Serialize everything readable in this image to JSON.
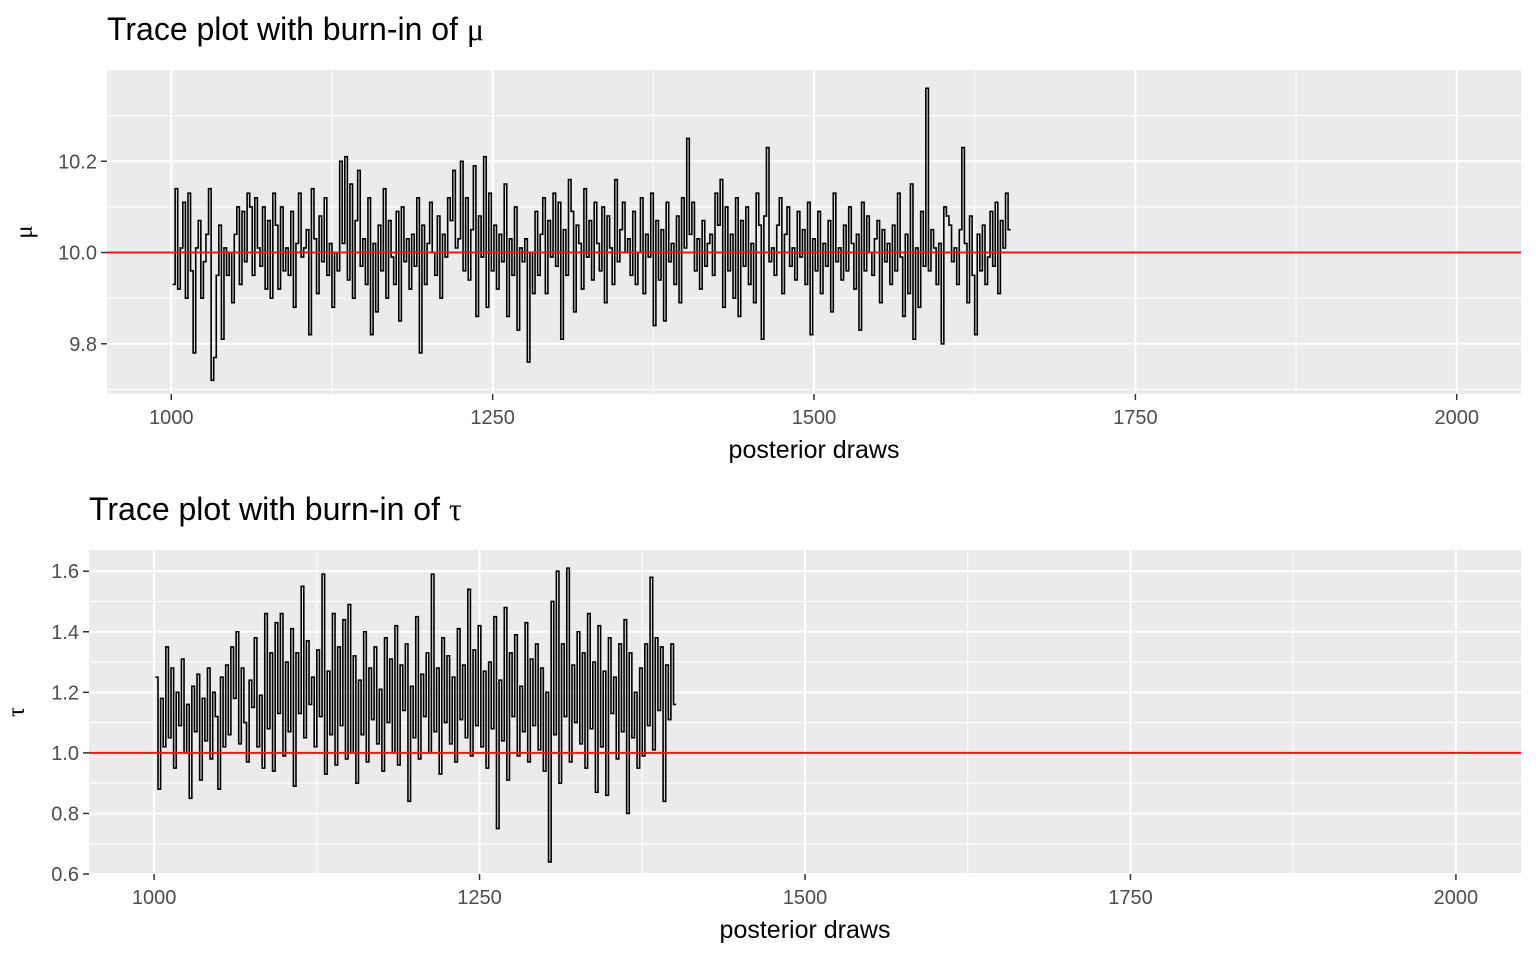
{
  "chart_data": [
    {
      "type": "line",
      "title_prefix": "Trace plot with burn-in of ",
      "title_symbol": "μ",
      "xlabel": "posterior draws",
      "ylabel": "μ",
      "xlim": [
        950,
        2000
      ],
      "ylim": [
        9.69,
        10.4
      ],
      "xticks": [
        1000,
        1250,
        1500,
        1750,
        2000
      ],
      "xtick_labels": [
        "1000",
        "1250",
        "1500",
        "1750",
        "2000"
      ],
      "yticks": [
        9.8,
        10.0,
        10.2
      ],
      "ytick_labels": [
        "9.8",
        "10.0",
        "10.2"
      ],
      "reference_line": {
        "value": 10.0,
        "color": "#e41a1c"
      },
      "background": "#ebebeb",
      "grid": true,
      "series": [
        {
          "color": "#000000",
          "x_start": 1001,
          "x_step": 2,
          "values": [
            9.93,
            10.14,
            9.92,
            10.01,
            10.11,
            9.9,
            10.13,
            9.96,
            9.78,
            10.01,
            10.07,
            9.9,
            9.98,
            10.04,
            10.14,
            9.72,
            9.77,
            9.95,
            10.06,
            9.81,
            10.01,
            9.95,
            10.0,
            9.89,
            10.04,
            10.1,
            9.93,
            10.09,
            9.98,
            10.13,
            10.1,
            9.95,
            10.12,
            10.01,
            9.97,
            10.1,
            9.92,
            10.07,
            9.9,
            10.13,
            10.06,
            9.92,
            10.1,
            9.96,
            10.01,
            9.95,
            10.09,
            9.88,
            10.02,
            10.13,
            9.99,
            10.01,
            10.05,
            9.82,
            10.14,
            10.03,
            9.91,
            10.08,
            9.98,
            10.12,
            9.95,
            10.02,
            9.88,
            10.0,
            9.96,
            10.2,
            10.02,
            10.21,
            9.94,
            10.15,
            9.9,
            10.07,
            10.18,
            9.97,
            10.03,
            9.93,
            10.12,
            9.82,
            10.02,
            9.87,
            10.06,
            9.96,
            10.14,
            9.9,
            10.07,
            9.99,
            9.93,
            10.09,
            9.85,
            10.1,
            9.98,
            10.03,
            9.92,
            10.04,
            9.97,
            10.12,
            9.78,
            10.06,
            9.93,
            10.02,
            10.11,
            10.0,
            9.95,
            10.08,
            9.9,
            10.04,
            9.99,
            10.12,
            10.07,
            10.18,
            10.01,
            10.03,
            10.2,
            9.96,
            10.12,
            9.94,
            10.05,
            10.19,
            9.86,
            10.08,
            9.99,
            10.21,
            9.88,
            10.13,
            9.96,
            10.06,
            9.92,
            10.04,
            9.98,
            10.15,
            9.86,
            10.03,
            9.95,
            10.1,
            9.83,
            10.01,
            9.98,
            10.03,
            9.76,
            10.0,
            9.91,
            10.09,
            9.95,
            10.04,
            10.12,
            9.91,
            10.07,
            9.99,
            10.13,
            9.97,
            10.11,
            9.81,
            10.05,
            9.95,
            10.16,
            10.09,
            9.87,
            10.06,
            10.02,
            9.92,
            10.14,
            9.99,
            10.07,
            9.94,
            10.11,
            10.02,
            9.96,
            10.1,
            9.89,
            10.08,
            10.01,
            9.93,
            10.16,
            9.98,
            10.05,
            10.11,
            10.0,
            10.03,
            9.95,
            10.09,
            9.93,
            10.0,
            10.12,
            9.91,
            10.04,
            9.99,
            10.13,
            9.84,
            10.07,
            9.94,
            10.05,
            9.85,
            10.11,
            9.98,
            10.02,
            9.93,
            10.08,
            9.89,
            10.12,
            10.01,
            10.25,
            10.04,
            10.11,
            9.96,
            10.03,
            9.92,
            10.07,
            9.97,
            10.02,
            10.04,
            9.95,
            10.13,
            10.06,
            10.16,
            9.88,
            10.1,
            9.96,
            10.04,
            9.9,
            10.12,
            9.86,
            10.07,
            9.97,
            10.1,
            9.93,
            10.02,
            9.89,
            10.13,
            10.06,
            9.81,
            10.08,
            10.23,
            9.98,
            10.01,
            9.95,
            10.06,
            10.12,
            9.91,
            10.04,
            10.1,
            9.97,
            10.01,
            9.94,
            10.09,
            9.99,
            10.05,
            9.93,
            10.11,
            9.82,
            10.03,
            9.96,
            10.09,
            9.91,
            10.02,
            9.97,
            10.07,
            9.87,
            10.13,
            9.98,
            10.01,
            9.94,
            10.06,
            9.96,
            10.1,
            10.02,
            9.92,
            10.04,
            9.83,
            10.11,
            9.96,
            10.08,
            10.0,
            9.95,
            10.03,
            10.07,
            9.89,
            10.05,
            9.98,
            10.02,
            9.93,
            10.06,
            9.96,
            10.13,
            9.99,
            9.86,
            10.04,
            9.91,
            10.15,
            9.81,
            10.01,
            9.88,
            10.09,
            9.97,
            10.36,
            9.96,
            10.05,
            10.01,
            9.93,
            10.02,
            9.8,
            10.1,
            10.08,
            10.06,
            9.98,
            10.01,
            9.93,
            10.05,
            10.23,
            10.02,
            9.89,
            10.08,
            9.95,
            9.82,
            10.04,
            9.96,
            10.06,
            9.93,
            9.99,
            10.09,
            9.97,
            10.11,
            9.91,
            10.07,
            10.01,
            10.13,
            10.05
          ]
        }
      ]
    },
    {
      "type": "line",
      "title_prefix": "Trace plot with burn-in of ",
      "title_symbol": "τ",
      "xlabel": "posterior draws",
      "ylabel": "τ",
      "xlim": [
        950,
        2000
      ],
      "ylim": [
        0.6,
        1.67
      ],
      "xticks": [
        1000,
        1250,
        1500,
        1750,
        2000
      ],
      "xtick_labels": [
        "1000",
        "1250",
        "1500",
        "1750",
        "2000"
      ],
      "yticks": [
        0.6,
        0.8,
        1.0,
        1.2,
        1.4,
        1.6
      ],
      "ytick_labels": [
        "0.6",
        "0.8",
        "1.0",
        "1.2",
        "1.4",
        "1.6"
      ],
      "reference_line": {
        "value": 1.0,
        "color": "#e41a1c"
      },
      "background": "#ebebeb",
      "grid": true,
      "series": [
        {
          "color": "#000000",
          "x_start": 1001,
          "x_step": 2,
          "values": [
            1.25,
            0.88,
            1.18,
            1.02,
            1.35,
            1.05,
            1.28,
            0.95,
            1.2,
            1.09,
            1.31,
            1.0,
            1.16,
            0.85,
            1.22,
            1.07,
            1.26,
            0.91,
            1.18,
            1.04,
            1.28,
            0.98,
            1.2,
            1.12,
            0.88,
            1.25,
            1.02,
            1.29,
            1.06,
            1.35,
            1.18,
            1.4,
            1.03,
            1.28,
            1.1,
            0.97,
            1.24,
            1.15,
            1.38,
            1.02,
            1.19,
            0.95,
            1.46,
            1.08,
            1.33,
            0.94,
            1.43,
            1.13,
            1.46,
            0.99,
            1.3,
            1.07,
            1.41,
            0.89,
            1.33,
            1.13,
            1.55,
            1.05,
            1.37,
            1.16,
            1.25,
            1.02,
            1.34,
            1.12,
            1.59,
            0.93,
            1.27,
            1.06,
            1.46,
            0.96,
            1.35,
            1.09,
            1.44,
            0.98,
            1.49,
            1.0,
            1.32,
            0.9,
            1.24,
            1.06,
            1.4,
            0.97,
            1.28,
            1.11,
            1.35,
            1.03,
            1.21,
            0.94,
            1.38,
            1.1,
            1.31,
            1.0,
            1.42,
            0.96,
            1.29,
            1.14,
            1.36,
            0.84,
            1.22,
            1.05,
            1.45,
            0.98,
            1.26,
            1.12,
            1.33,
            1.0,
            1.59,
            1.07,
            1.28,
            0.93,
            1.38,
            1.1,
            1.32,
            1.03,
            1.25,
            0.97,
            1.41,
            1.11,
            1.29,
            1.05,
            1.54,
            0.99,
            1.34,
            1.09,
            1.42,
            1.02,
            1.27,
            0.95,
            1.3,
            1.08,
            1.45,
            0.75,
            1.24,
            1.04,
            1.48,
            0.91,
            1.33,
            1.12,
            1.39,
            0.99,
            1.22,
            1.07,
            1.43,
            0.97,
            1.31,
            1.09,
            1.36,
            1.01,
            1.28,
            0.94,
            1.2,
            0.64,
            1.5,
            1.06,
            1.6,
            0.9,
            1.36,
            1.12,
            1.61,
            0.97,
            1.29,
            1.1,
            1.4,
            1.03,
            1.33,
            0.95,
            1.46,
            1.08,
            1.3,
            0.87,
            1.42,
            1.02,
            1.27,
            0.86,
            1.38,
            1.13,
            1.25,
            0.98,
            1.36,
            1.07,
            1.44,
            0.8,
            1.33,
            1.05,
            1.2,
            0.95,
            1.28,
            0.99,
            1.36,
            1.09,
            1.58,
            1.01,
            1.38,
            1.14,
            1.35,
            0.84,
            1.29,
            1.11,
            1.36,
            1.16
          ]
        }
      ]
    }
  ]
}
